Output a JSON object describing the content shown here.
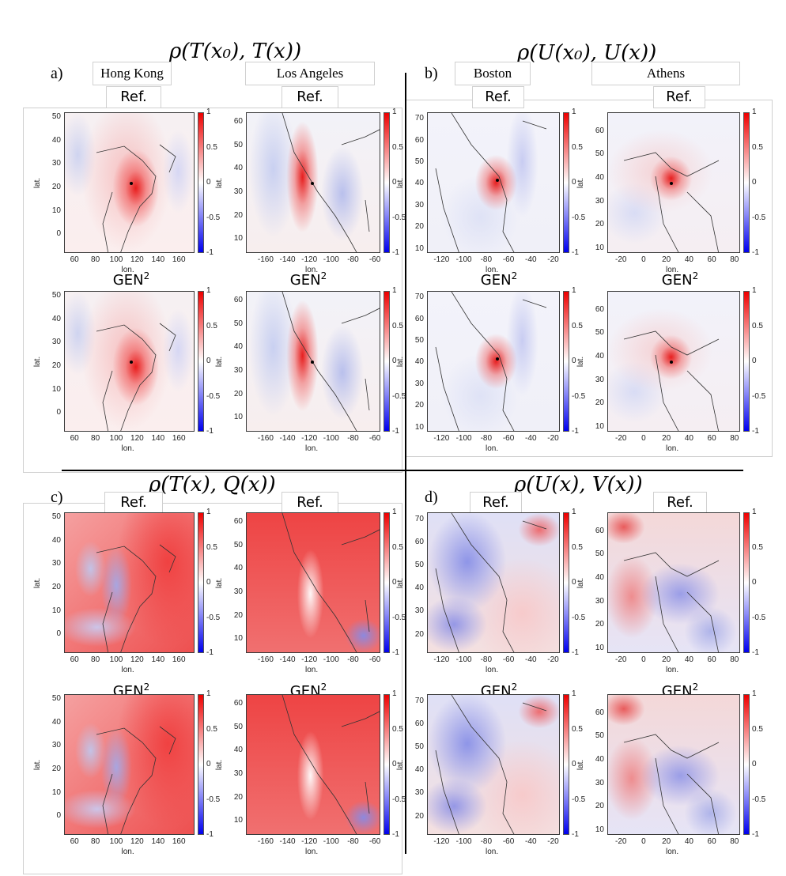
{
  "titles": {
    "a": "ρ(T(x₀), T(x))",
    "b": "ρ(U(x₀), U(x))",
    "c": "ρ(T(x), Q(x))",
    "d": "ρ(U(x), V(x))"
  },
  "panel_labels": {
    "a": "a)",
    "b": "b)",
    "c": "c)",
    "d": "d)"
  },
  "cities": {
    "hong_kong": "Hong Kong",
    "los_angeles": "Los Angeles",
    "boston": "Boston",
    "athens": "Athens"
  },
  "labels": {
    "ref": "Ref.",
    "gen_base": "GEN",
    "gen_sup": "2",
    "lat": "lat.",
    "lon": "lon."
  },
  "colorbar": {
    "ticks": [
      "1",
      "0.5",
      "0",
      "-0.5",
      "-1"
    ],
    "min_color": "#0000ee",
    "mid_color": "#ffffff",
    "max_color": "#ee0000"
  },
  "chart_data": [
    {
      "type": "heatmap",
      "panel": "a",
      "location": "Hong Kong",
      "xlabel": "lon.",
      "ylabel": "lat.",
      "xticks": [
        60,
        80,
        100,
        120,
        140,
        160
      ],
      "yticks": [
        0,
        10,
        20,
        30,
        40,
        50
      ],
      "xlim": [
        50,
        175
      ],
      "ylim": [
        -8,
        52
      ],
      "clim": [
        -1,
        1
      ],
      "ref_peak": {
        "lon": 114,
        "lat": 22,
        "value": 1
      },
      "gen_peak": {
        "lon": 114,
        "lat": 22,
        "value": 1
      }
    },
    {
      "type": "heatmap",
      "panel": "a",
      "location": "Los Angeles",
      "xlabel": "lon.",
      "ylabel": "lat.",
      "xticks": [
        -160,
        -140,
        -120,
        -100,
        -80,
        -60
      ],
      "yticks": [
        10,
        20,
        30,
        40,
        50,
        60
      ],
      "xlim": [
        -178,
        -55
      ],
      "ylim": [
        4,
        64
      ],
      "clim": [
        -1,
        1
      ],
      "ref_peak": {
        "lon": -118,
        "lat": 34,
        "value": 1
      },
      "gen_peak": {
        "lon": -118,
        "lat": 34,
        "value": 1
      }
    },
    {
      "type": "heatmap",
      "panel": "b",
      "location": "Boston",
      "xlabel": "lon.",
      "ylabel": "lat.",
      "xticks": [
        -120,
        -100,
        -80,
        -60,
        -40,
        -20
      ],
      "yticks": [
        10,
        20,
        30,
        40,
        50,
        60,
        70
      ],
      "xlim": [
        -133,
        -14
      ],
      "ylim": [
        8,
        73
      ],
      "clim": [
        -1,
        1
      ],
      "ref_peak": {
        "lon": -71,
        "lat": 42,
        "value": 1
      },
      "gen_peak": {
        "lon": -71,
        "lat": 42,
        "value": 1
      }
    },
    {
      "type": "heatmap",
      "panel": "b",
      "location": "Athens",
      "xlabel": "lon.",
      "ylabel": "lat.",
      "xticks": [
        -20,
        0,
        20,
        40,
        60,
        80
      ],
      "yticks": [
        10,
        20,
        30,
        40,
        50,
        60
      ],
      "xlim": [
        -32,
        85
      ],
      "ylim": [
        8,
        68
      ],
      "clim": [
        -1,
        1
      ],
      "ref_peak": {
        "lon": 24,
        "lat": 38,
        "value": 1
      },
      "gen_peak": {
        "lon": 24,
        "lat": 38,
        "value": 1
      }
    },
    {
      "type": "heatmap",
      "panel": "c",
      "location": "Hong Kong",
      "xlabel": "lon.",
      "ylabel": "lat.",
      "xticks": [
        60,
        80,
        100,
        120,
        140,
        160
      ],
      "yticks": [
        0,
        10,
        20,
        30,
        40,
        50
      ],
      "xlim": [
        50,
        175
      ],
      "ylim": [
        -8,
        52
      ],
      "clim": [
        -1,
        1
      ]
    },
    {
      "type": "heatmap",
      "panel": "c",
      "location": "Los Angeles",
      "xlabel": "lon.",
      "ylabel": "lat.",
      "xticks": [
        -160,
        -140,
        -120,
        -100,
        -80,
        -60
      ],
      "yticks": [
        10,
        20,
        30,
        40,
        50,
        60
      ],
      "xlim": [
        -178,
        -55
      ],
      "ylim": [
        4,
        64
      ],
      "clim": [
        -1,
        1
      ]
    },
    {
      "type": "heatmap",
      "panel": "d",
      "location": "Boston",
      "xlabel": "lon.",
      "ylabel": "lat.",
      "xticks": [
        -120,
        -100,
        -80,
        -60,
        -40,
        -20
      ],
      "yticks": [
        20,
        30,
        40,
        50,
        60,
        70
      ],
      "xlim": [
        -133,
        -14
      ],
      "ylim": [
        12,
        73
      ],
      "clim": [
        -1,
        1
      ]
    },
    {
      "type": "heatmap",
      "panel": "d",
      "location": "Athens",
      "xlabel": "lon.",
      "ylabel": "lat.",
      "xticks": [
        -20,
        0,
        20,
        40,
        60,
        80
      ],
      "yticks": [
        10,
        20,
        30,
        40,
        50,
        60
      ],
      "xlim": [
        -32,
        85
      ],
      "ylim": [
        8,
        68
      ],
      "clim": [
        -1,
        1
      ]
    }
  ]
}
